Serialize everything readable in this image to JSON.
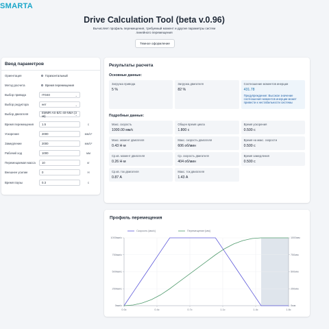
{
  "header": {
    "logo": "SMARTA",
    "title": "Drive Calculation Tool (beta v.0.96)",
    "subtitle": "Вычисляет профиль перемещения, требуемый момент и другие параметры систем линейного перемещения",
    "theme_button": "Темное оформление"
  },
  "inputs": {
    "title": "Ввод параметров",
    "radios": [
      {
        "label": "Ориентация",
        "option": "Горизонтальный"
      },
      {
        "label": "Метод расчета",
        "option": "Время перемещения"
      }
    ],
    "selects": [
      {
        "label": "Выбор привода",
        "selected": "ITO40"
      },
      {
        "label": "Выбор редуктора",
        "selected": "нет"
      },
      {
        "label": "Выбор двигателя",
        "selected": "EMMR-AS-B/C-40-NMA (3 кв)"
      }
    ],
    "fields": [
      {
        "label": "Время перемещения",
        "value": "1.5",
        "unit": "с"
      },
      {
        "label": "Ускорение",
        "value": "2000",
        "unit": "мм/с²"
      },
      {
        "label": "Замедление",
        "value": "2000",
        "unit": "мм/с²"
      },
      {
        "label": "Рабочий ход",
        "value": "1000",
        "unit": "мм"
      },
      {
        "label": "Перемещаемая масса",
        "value": "10",
        "unit": "кг"
      },
      {
        "label": "Внешнее усилие",
        "value": "0",
        "unit": "Н"
      },
      {
        "label": "Время паузы",
        "value": "0.3",
        "unit": "с"
      }
    ]
  },
  "results": {
    "title": "Результаты расчета",
    "main_heading": "Основные данные:",
    "main_cards": [
      {
        "label": "Загрузка привода",
        "value": "5 %"
      },
      {
        "label": "Загрузка двигателя",
        "value": "82 %"
      },
      {
        "label": "Соотношение моментов инерции",
        "value": "431.78",
        "note": "Предупреждение: Высокое значение соотношения моментов инерции может привести к нестабильности системы"
      }
    ],
    "detail_heading": "Подробные данные:",
    "detail_cards": [
      {
        "label": "Макс. скорость",
        "value": "1000.00 мм/с"
      },
      {
        "label": "Общее время цикла",
        "value": "1.800 с"
      },
      {
        "label": "Время ускорения",
        "value": "0.500 с"
      },
      {
        "label": "Макс. момент двигателя",
        "value": "0.43 Н·м"
      },
      {
        "label": "Макс. скорость двигателя",
        "value": "606 об/мин"
      },
      {
        "label": "Время на макс. скорости",
        "value": "0.500 с"
      },
      {
        "label": "Ср.кв. момент двигателя",
        "value": "0.26 Н·м"
      },
      {
        "label": "Ср. скорость двигателя",
        "value": "404 об/мин"
      },
      {
        "label": "Время замедления",
        "value": "0.500 с"
      },
      {
        "label": "Ср.кв. ток двигателя",
        "value": "0.87 А"
      },
      {
        "label": "Макс. ток двигателя",
        "value": "1.43 А"
      }
    ]
  },
  "chart_data": {
    "type": "line",
    "title": "Профиль перемещения",
    "x": [
      0,
      0.1,
      0.2,
      0.3,
      0.4,
      0.5,
      0.6,
      0.7,
      0.8,
      0.9,
      1.0,
      1.1,
      1.2,
      1.3,
      1.4,
      1.5,
      1.6,
      1.7,
      1.8
    ],
    "series": [
      {
        "name": "Скорость [мм/с]",
        "color": "#5b57d9",
        "axis": "y",
        "values": [
          0,
          200,
          400,
          600,
          800,
          1000,
          1000,
          1000,
          1000,
          1000,
          1000,
          800,
          600,
          400,
          200,
          0,
          0,
          0,
          0
        ]
      },
      {
        "name": "Перемещение [мм]",
        "color": "#4f9a6c",
        "axis": "y2",
        "values": [
          0,
          10,
          40,
          90,
          160,
          250,
          350,
          450,
          550,
          650,
          750,
          840,
          910,
          960,
          990,
          1000,
          1000,
          1000,
          1000
        ]
      }
    ],
    "xlim": [
      0,
      1.8
    ],
    "xticks": [
      {
        "value": 0,
        "label": "0.0с"
      },
      {
        "value": 0.36,
        "label": "0.4с"
      },
      {
        "value": 0.72,
        "label": "0.7с"
      },
      {
        "value": 1.08,
        "label": "1.1с"
      },
      {
        "value": 1.44,
        "label": "1.4с"
      },
      {
        "value": 1.8,
        "label": "1.8с"
      }
    ],
    "ylim": [
      0,
      1000
    ],
    "yticks": [
      {
        "value": 0,
        "label": "0мм/с"
      },
      {
        "value": 250,
        "label": "250мм/с"
      },
      {
        "value": 500,
        "label": "500мм/с"
      },
      {
        "value": 750,
        "label": "750мм/с"
      },
      {
        "value": 1000,
        "label": "1000мм/с"
      }
    ],
    "y2lim": [
      0,
      1000
    ],
    "y2ticks": [
      {
        "value": 0,
        "label": "0мм"
      },
      {
        "value": 250,
        "label": "250мм"
      },
      {
        "value": 500,
        "label": "500мм"
      },
      {
        "value": 750,
        "label": "750мм"
      },
      {
        "value": 1000,
        "label": "1000мм"
      }
    ],
    "shaded_range": [
      1.5,
      1.8
    ],
    "grid": true
  }
}
